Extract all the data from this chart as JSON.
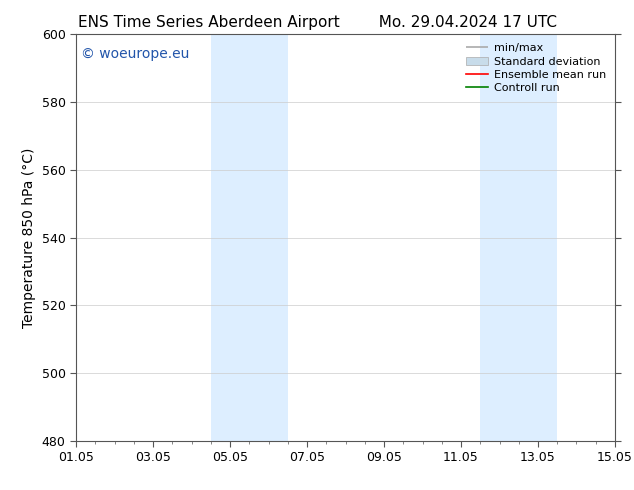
{
  "title_left": "ENS Time Series Aberdeen Airport",
  "title_right": "Mo. 29.04.2024 17 UTC",
  "ylabel": "Temperature 850 hPa (°C)",
  "xlim_dates": [
    "01.05",
    "03.05",
    "05.05",
    "07.05",
    "09.05",
    "11.05",
    "13.05",
    "15.05"
  ],
  "ylim": [
    480,
    600
  ],
  "yticks": [
    480,
    500,
    520,
    540,
    560,
    580,
    600
  ],
  "x_num_days": 14,
  "xtick_positions": [
    0,
    2,
    4,
    6,
    8,
    10,
    12,
    14
  ],
  "shaded_bands": [
    {
      "x_start": 3.5,
      "x_end": 4.5
    },
    {
      "x_start": 4.5,
      "x_end": 5.5
    },
    {
      "x_start": 10.5,
      "x_end": 11.5
    },
    {
      "x_start": 11.5,
      "x_end": 12.5
    }
  ],
  "shaded_color": "#ddeeff",
  "watermark": "© woeurope.eu",
  "watermark_color": "#2255aa",
  "legend_entries": [
    {
      "label": "min/max",
      "color": "#aaaaaa",
      "lw": 1.2,
      "ls": "-",
      "type": "line_caps"
    },
    {
      "label": "Standard deviation",
      "color": "#c8dcea",
      "lw": 6,
      "ls": "-",
      "type": "bar"
    },
    {
      "label": "Ensemble mean run",
      "color": "red",
      "lw": 1.2,
      "ls": "-",
      "type": "line"
    },
    {
      "label": "Controll run",
      "color": "green",
      "lw": 1.2,
      "ls": "-",
      "type": "line"
    }
  ],
  "bg_color": "#ffffff",
  "grid_color": "#cccccc",
  "title_fontsize": 11,
  "tick_label_fontsize": 9,
  "ylabel_fontsize": 10,
  "watermark_fontsize": 10,
  "legend_fontsize": 8
}
